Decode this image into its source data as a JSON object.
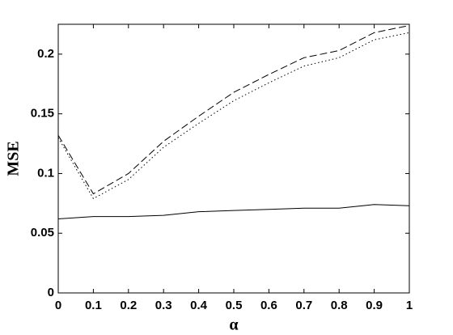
{
  "chart_data": {
    "type": "line",
    "xlabel": "α",
    "ylabel": "MSE",
    "x": [
      0,
      0.1,
      0.2,
      0.3,
      0.4,
      0.5,
      0.6,
      0.7,
      0.8,
      0.9,
      1
    ],
    "series": [
      {
        "color": "#000000",
        "style": "dashed",
        "values": [
          0.132,
          0.083,
          0.1,
          0.127,
          0.148,
          0.168,
          0.183,
          0.197,
          0.203,
          0.218,
          0.224
        ]
      },
      {
        "color": "#000000",
        "style": "dotted",
        "values": [
          0.13,
          0.079,
          0.095,
          0.122,
          0.142,
          0.161,
          0.176,
          0.19,
          0.197,
          0.212,
          0.218
        ]
      },
      {
        "color": "#000000",
        "style": "solid",
        "values": [
          0.062,
          0.064,
          0.064,
          0.065,
          0.068,
          0.069,
          0.07,
          0.071,
          0.071,
          0.074,
          0.073
        ]
      }
    ],
    "xlim": [
      0,
      1
    ],
    "xticks": [
      0,
      0.1,
      0.2,
      0.3,
      0.4,
      0.5,
      0.6,
      0.7,
      0.8,
      0.9,
      1
    ],
    "ylim": [
      0,
      0.225
    ],
    "yticks": [
      0,
      0.05,
      0.1,
      0.15,
      0.2
    ],
    "grid": false
  }
}
